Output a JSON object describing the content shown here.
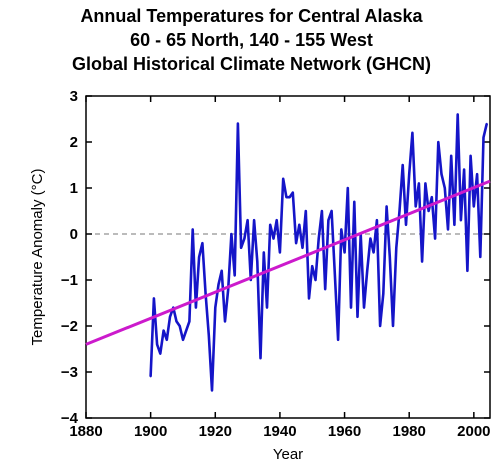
{
  "chart_data": {
    "type": "line",
    "title": "Annual Temperatures for Central Alaska",
    "subtitle": "60 - 65 North, 140 - 155 West",
    "source": "Global Historical Climate Network (GHCN)",
    "xlabel": "Year",
    "ylabel": "Temperature Anomaly (°C)",
    "xlim": [
      1880,
      2005
    ],
    "ylim": [
      -4,
      3
    ],
    "x_ticks": [
      1880,
      1900,
      1920,
      1940,
      1960,
      1980,
      2000
    ],
    "y_ticks": [
      -4,
      -3,
      -2,
      -1,
      0,
      1,
      2,
      3
    ],
    "grid": false,
    "zero_line": true,
    "series": [
      {
        "color": "#1515c8",
        "x": [
          1900,
          1901,
          1902,
          1903,
          1904,
          1905,
          1906,
          1907,
          1908,
          1909,
          1910,
          1911,
          1912,
          1913,
          1914,
          1915,
          1916,
          1917,
          1918,
          1919,
          1920,
          1921,
          1922,
          1923,
          1924,
          1925,
          1926,
          1927,
          1928,
          1929,
          1930,
          1931,
          1932,
          1933,
          1934,
          1935,
          1936,
          1937,
          1938,
          1939,
          1940,
          1941,
          1942,
          1943,
          1944,
          1945,
          1946,
          1947,
          1948,
          1949,
          1950,
          1951,
          1952,
          1953,
          1954,
          1955,
          1956,
          1957,
          1958,
          1959,
          1960,
          1961,
          1962,
          1963,
          1964,
          1965,
          1966,
          1967,
          1968,
          1969,
          1970,
          1971,
          1972,
          1973,
          1974,
          1975,
          1976,
          1977,
          1978,
          1979,
          1980,
          1981,
          1982,
          1983,
          1984,
          1985,
          1986,
          1987,
          1988,
          1989,
          1990,
          1991,
          1992,
          1993,
          1994,
          1995,
          1996,
          1997,
          1998,
          1999,
          2000,
          2001,
          2002,
          2003,
          2004
        ],
        "y": [
          -3.1,
          -1.4,
          -2.4,
          -2.6,
          -2.1,
          -2.3,
          -1.8,
          -1.6,
          -1.9,
          -2.0,
          -2.3,
          -2.1,
          -1.9,
          0.1,
          -1.6,
          -0.5,
          -0.2,
          -1.3,
          -2.2,
          -3.4,
          -1.6,
          -1.1,
          -0.8,
          -1.9,
          -1.2,
          0.0,
          -0.9,
          2.4,
          -0.3,
          -0.1,
          0.3,
          -1.0,
          0.3,
          -0.6,
          -2.7,
          -0.4,
          -1.6,
          0.2,
          -0.1,
          0.3,
          -0.4,
          1.2,
          0.8,
          0.8,
          0.9,
          -0.2,
          0.2,
          -0.3,
          0.5,
          -1.4,
          -0.7,
          -1.0,
          -0.1,
          0.5,
          -1.2,
          0.3,
          0.5,
          -0.9,
          -2.3,
          0.1,
          -0.4,
          1.0,
          -1.6,
          0.7,
          -1.8,
          0.0,
          -1.6,
          -0.8,
          -0.1,
          -0.4,
          0.3,
          -2.0,
          -1.3,
          0.6,
          -0.5,
          -2.0,
          -0.3,
          0.5,
          1.5,
          0.2,
          1.3,
          2.2,
          0.6,
          1.1,
          -0.6,
          1.1,
          0.5,
          0.8,
          -0.1,
          2.0,
          1.3,
          1.0,
          0.1,
          1.7,
          0.2,
          2.6,
          0.3,
          1.4,
          -0.8,
          1.7,
          0.6,
          1.3,
          -0.5,
          2.1,
          2.4
        ]
      },
      {
        "type": "trend",
        "color": "#cc1acc",
        "x": [
          1880,
          2005
        ],
        "y": [
          -2.4,
          1.15
        ]
      }
    ]
  }
}
